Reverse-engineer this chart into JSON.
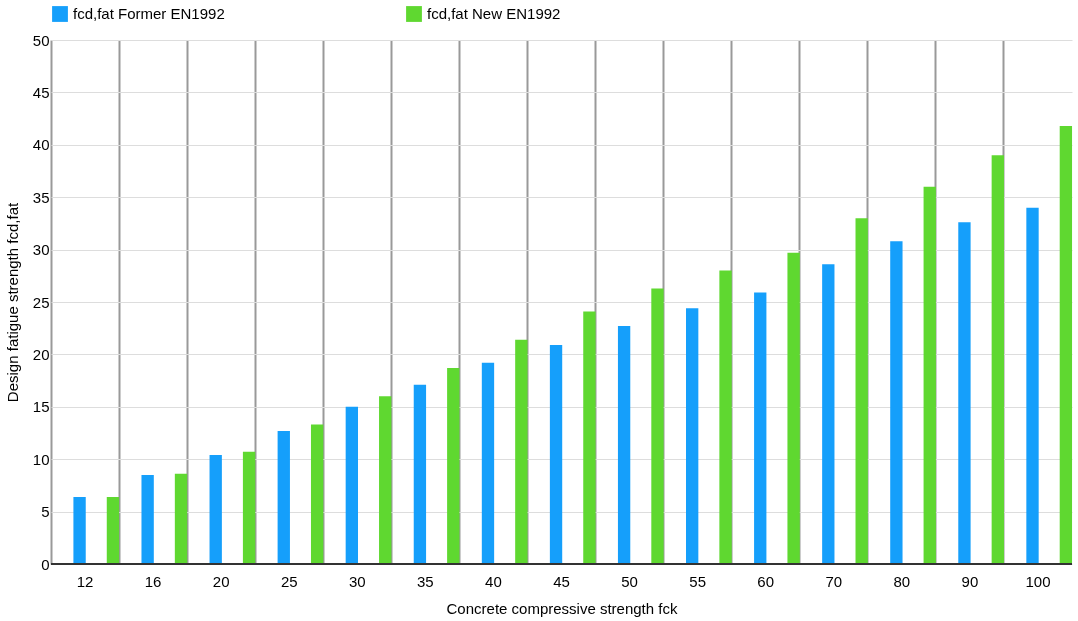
{
  "chart_data": {
    "type": "bar",
    "xlabel": "Concrete compressive strength fck",
    "ylabel": "Design fatigue strength fcd,fat",
    "categories": [
      "12",
      "16",
      "20",
      "25",
      "30",
      "35",
      "40",
      "45",
      "50",
      "55",
      "60",
      "70",
      "80",
      "90",
      "100"
    ],
    "series": [
      {
        "name": "fcd,fat Former EN1992",
        "color": "#159ffb",
        "values": [
          6.4,
          8.5,
          10.4,
          12.7,
          15.0,
          17.1,
          19.2,
          20.9,
          22.7,
          24.4,
          25.9,
          28.6,
          30.8,
          32.6,
          34.0
        ]
      },
      {
        "name": "fcd,fat New EN1992",
        "color": "#5fd830",
        "values": [
          6.4,
          8.6,
          10.7,
          13.3,
          16.0,
          18.7,
          21.4,
          24.1,
          26.3,
          28.0,
          29.7,
          33.0,
          36.0,
          39.0,
          41.8
        ]
      }
    ],
    "ylim": [
      0,
      50
    ],
    "yticks": [
      0,
      5,
      10,
      15,
      20,
      25,
      30,
      35,
      40,
      45,
      50
    ],
    "grid": true,
    "legend": "top"
  }
}
